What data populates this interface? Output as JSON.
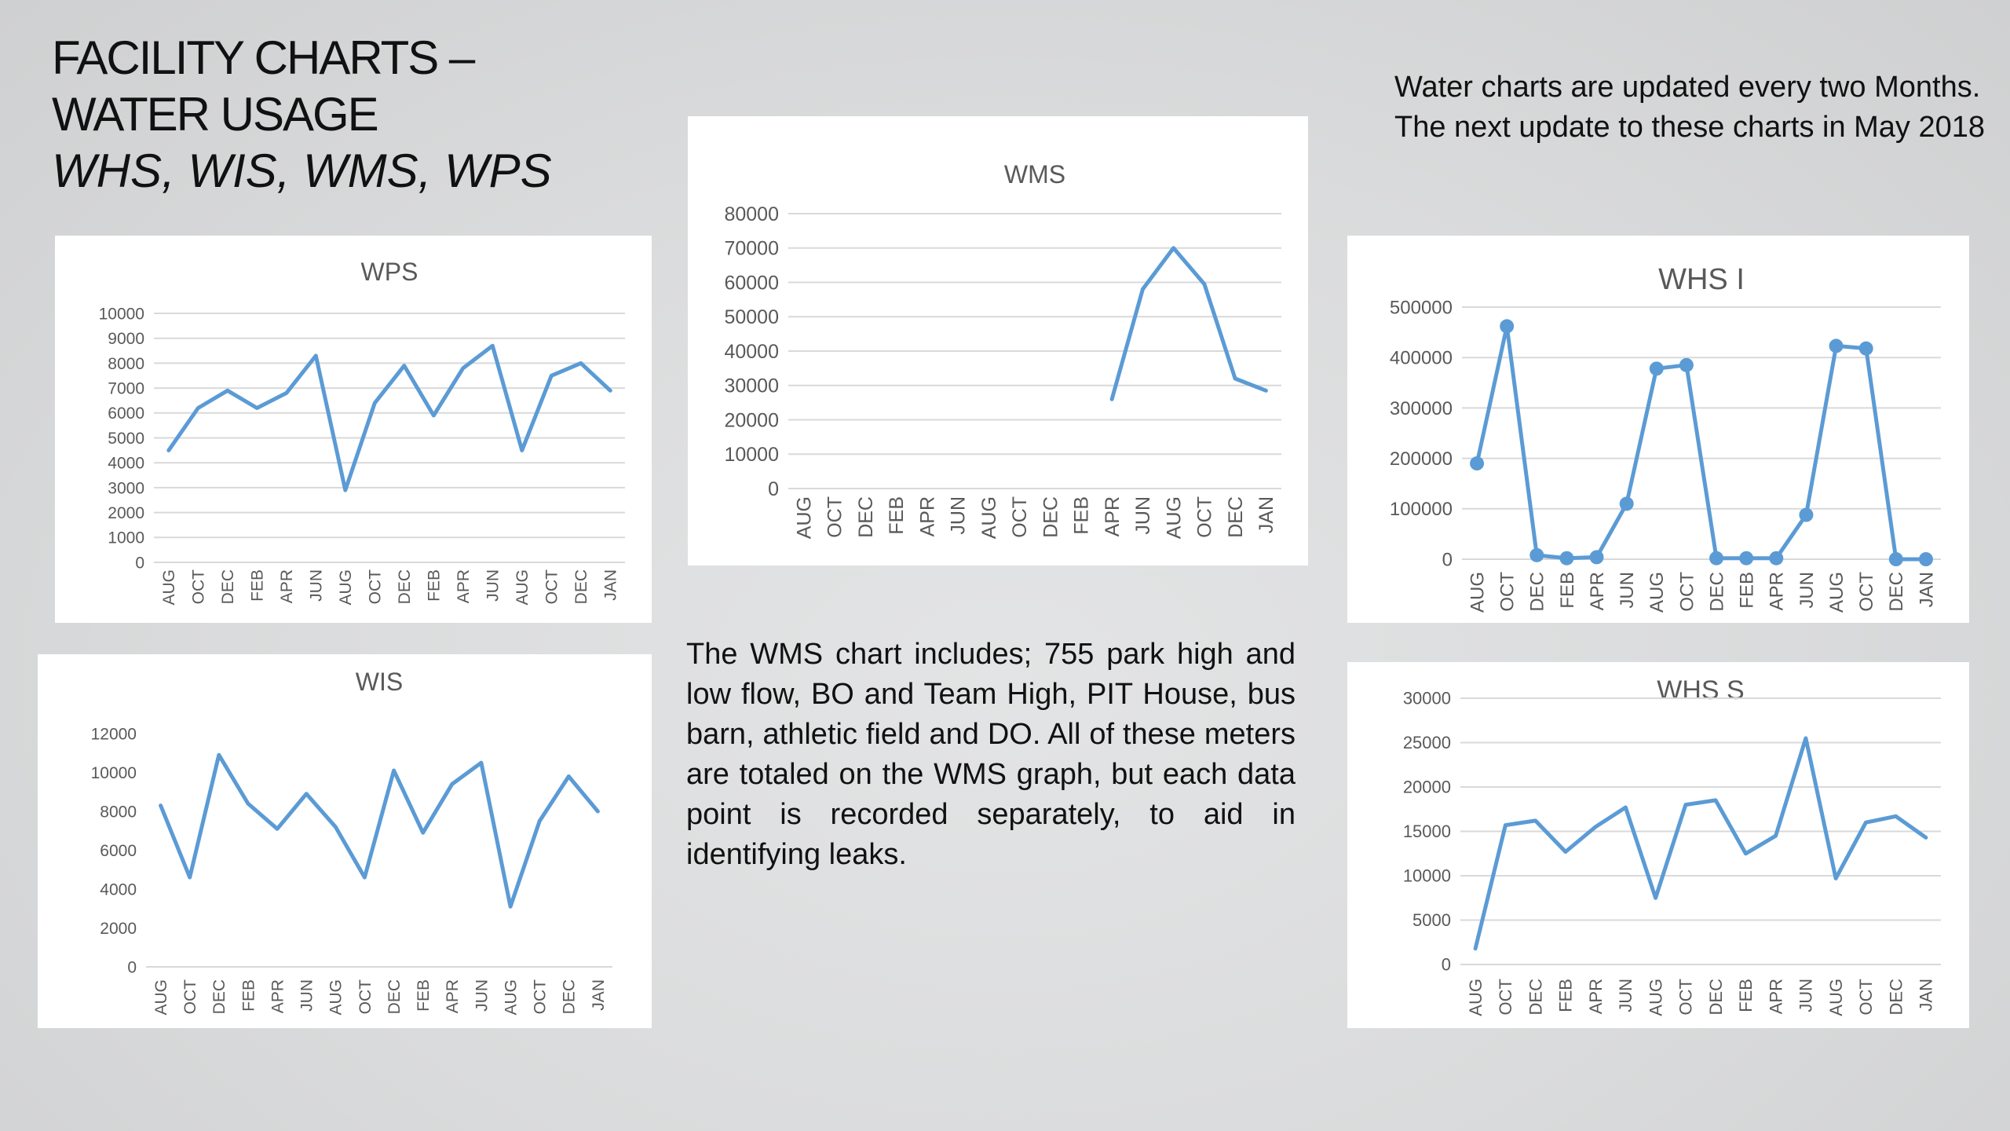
{
  "slide": {
    "title_line1": "FACILITY CHARTS –",
    "title_line2": "WATER USAGE",
    "subtitle": "WHS, WIS, WMS, WPS",
    "note_top": "Water charts are updated every two Months. The next update to these charts in May 2018",
    "note_mid": "The WMS chart includes; 755 park high and low flow, BO and Team High, PIT House, bus barn, athletic field and DO. All of these meters are totaled on the WMS graph, but each data point is recorded separately, to aid in identifying leaks."
  },
  "colors": {
    "line": "#5b9bd5",
    "grid": "#d9d9d9",
    "text": "#595959"
  },
  "chart_data": [
    {
      "id": "wps",
      "type": "line",
      "title": "WPS",
      "categories": [
        "AUG",
        "OCT",
        "DEC",
        "FEB",
        "APR",
        "JUN",
        "AUG",
        "OCT",
        "DEC",
        "FEB",
        "APR",
        "JUN",
        "AUG",
        "OCT",
        "DEC",
        "JAN"
      ],
      "values": [
        4500,
        6200,
        6900,
        6200,
        6800,
        8300,
        2900,
        6400,
        7900,
        5900,
        7800,
        8700,
        4500,
        7500,
        8000,
        6900
      ],
      "ylim": [
        0,
        10000
      ],
      "yticks": [
        "0",
        "1000",
        "2000",
        "3000",
        "4000",
        "5000",
        "6000",
        "7000",
        "8000",
        "9000",
        "10000"
      ],
      "markers": false,
      "grid": true
    },
    {
      "id": "wis",
      "type": "line",
      "title": "WIS",
      "categories": [
        "AUG",
        "OCT",
        "DEC",
        "FEB",
        "APR",
        "JUN",
        "AUG",
        "OCT",
        "DEC",
        "FEB",
        "APR",
        "JUN",
        "AUG",
        "OCT",
        "DEC",
        "JAN"
      ],
      "values": [
        8300,
        4600,
        10900,
        8400,
        7100,
        8900,
        7200,
        4600,
        10100,
        6900,
        9400,
        10500,
        3100,
        7500,
        9800,
        8000
      ],
      "ylim": [
        0,
        12000
      ],
      "yticks": [
        "0",
        "2000",
        "4000",
        "6000",
        "8000",
        "10000",
        "12000"
      ],
      "markers": false,
      "grid": false
    },
    {
      "id": "wms",
      "type": "line",
      "title": "WMS",
      "categories": [
        "AUG",
        "OCT",
        "DEC",
        "FEB",
        "APR",
        "JUN",
        "AUG",
        "OCT",
        "DEC",
        "FEB",
        "APR",
        "JUN",
        "AUG",
        "OCT",
        "DEC",
        "JAN"
      ],
      "values": [
        null,
        null,
        null,
        null,
        null,
        null,
        null,
        null,
        null,
        null,
        26000,
        58000,
        70000,
        59500,
        32000,
        28500
      ],
      "ylim": [
        0,
        80000
      ],
      "yticks": [
        "0",
        "10000",
        "20000",
        "30000",
        "40000",
        "50000",
        "60000",
        "70000",
        "80000"
      ],
      "markers": false,
      "grid": true
    },
    {
      "id": "whs-i",
      "type": "line",
      "title": "WHS I",
      "categories": [
        "AUG",
        "OCT",
        "DEC",
        "FEB",
        "APR",
        "JUN",
        "AUG",
        "OCT",
        "DEC",
        "FEB",
        "APR",
        "JUN",
        "AUG",
        "OCT",
        "DEC",
        "JAN"
      ],
      "values": [
        190000,
        462000,
        8000,
        2000,
        4000,
        110000,
        378000,
        385000,
        2000,
        2000,
        2000,
        88000,
        423000,
        418000,
        0,
        0
      ],
      "ylim": [
        0,
        500000
      ],
      "yticks": [
        "0",
        "100000",
        "200000",
        "300000",
        "400000",
        "500000"
      ],
      "markers": true,
      "grid": true
    },
    {
      "id": "whs-s",
      "type": "line",
      "title": "WHS S",
      "categories": [
        "AUG",
        "OCT",
        "DEC",
        "FEB",
        "APR",
        "JUN",
        "AUG",
        "OCT",
        "DEC",
        "FEB",
        "APR",
        "JUN",
        "AUG",
        "OCT",
        "DEC",
        "JAN"
      ],
      "values": [
        1800,
        15700,
        16200,
        12700,
        15500,
        17700,
        7500,
        18000,
        18500,
        12500,
        14500,
        25500,
        9700,
        16000,
        16700,
        14300
      ],
      "ylim": [
        0,
        30000
      ],
      "yticks": [
        "0",
        "5000",
        "10000",
        "15000",
        "20000",
        "25000",
        "30000"
      ],
      "markers": false,
      "grid": true
    }
  ]
}
